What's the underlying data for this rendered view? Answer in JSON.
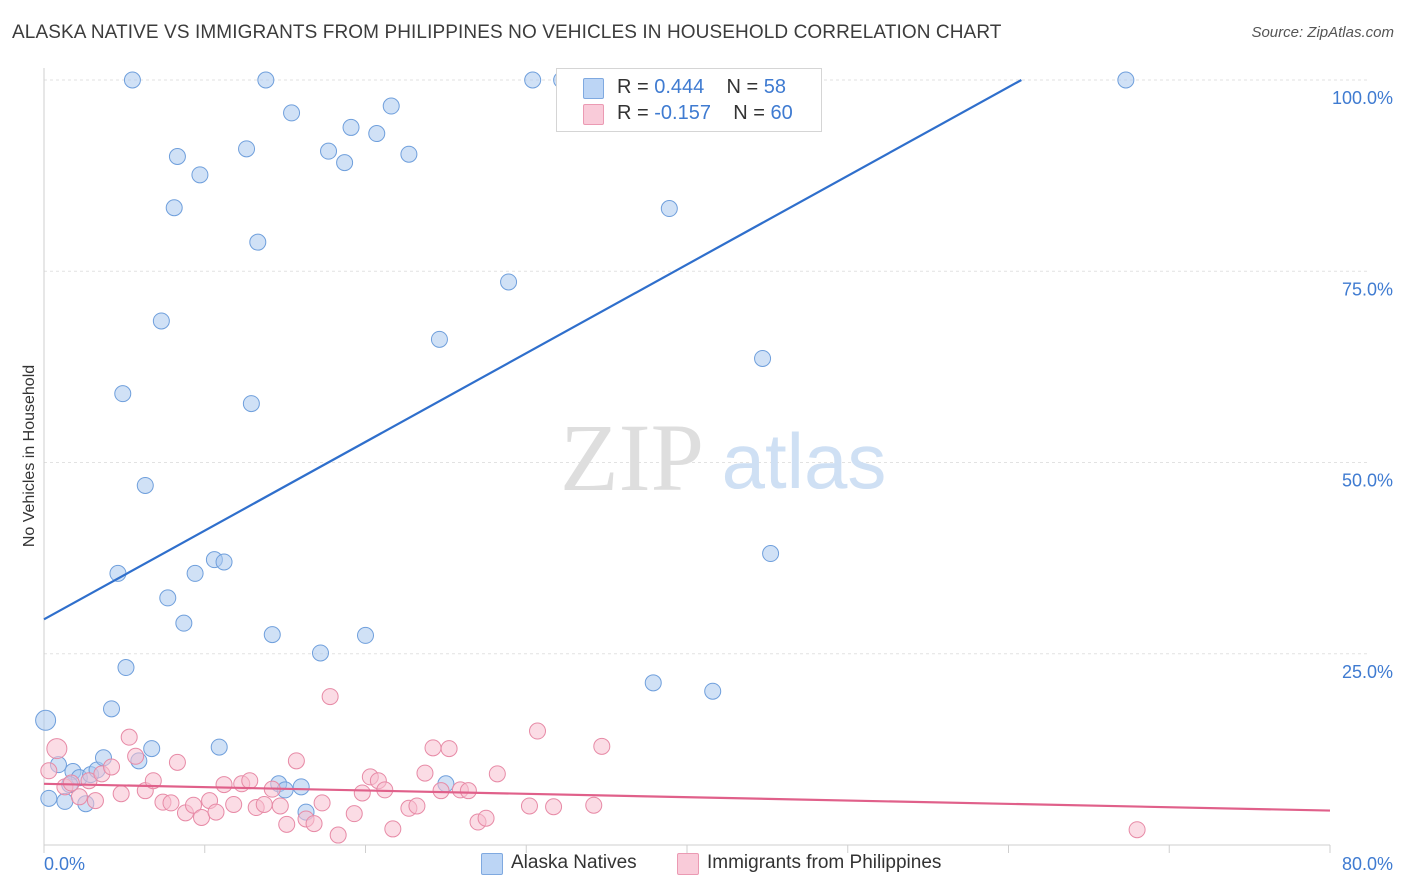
{
  "title": "ALASKA NATIVE VS IMMIGRANTS FROM PHILIPPINES NO VEHICLES IN HOUSEHOLD CORRELATION CHART",
  "source": "Source: ZipAtlas.com",
  "watermark": {
    "zip": "ZIP",
    "atlas": "atlas"
  },
  "legend": {
    "r_label": "R =",
    "n_label": "N =",
    "series": [
      {
        "r": "0.444",
        "n": "58"
      },
      {
        "r": "-0.157",
        "n": "60"
      }
    ]
  },
  "chart_data": {
    "type": "scatter",
    "ylabel": "No Vehicles in Household",
    "xlim": [
      0,
      80
    ],
    "ylim": [
      0,
      100
    ],
    "x_tick_labels": [
      "0.0%",
      "80.0%"
    ],
    "y_tick_values": [
      25,
      50,
      75,
      100
    ],
    "y_tick_labels": [
      "25.0%",
      "50.0%",
      "75.0%",
      "100.0%"
    ],
    "grid": true,
    "series": [
      {
        "name": "Alaska Natives",
        "color": "#a9c8ef",
        "stroke": "#6f9fdc",
        "trend_color": "#2f6fcc",
        "trend": {
          "x0": 0,
          "y0": 29.5,
          "x1": 60.8,
          "y1": 100
        },
        "points": [
          [
            0.1,
            16.3
          ],
          [
            0.3,
            6.1
          ],
          [
            0.9,
            10.5
          ],
          [
            1.3,
            5.7
          ],
          [
            1.8,
            9.6
          ],
          [
            2.2,
            8.8
          ],
          [
            2.6,
            5.4
          ],
          [
            2.9,
            9.2
          ],
          [
            3.3,
            9.8
          ],
          [
            3.7,
            11.4
          ],
          [
            4.2,
            17.8
          ],
          [
            4.6,
            35.5
          ],
          [
            4.9,
            59
          ],
          [
            5.1,
            23.2
          ],
          [
            5.5,
            100
          ],
          [
            5.9,
            11.0
          ],
          [
            6.3,
            47
          ],
          [
            6.7,
            12.6
          ],
          [
            7.3,
            68.5
          ],
          [
            7.7,
            32.3
          ],
          [
            8.1,
            83.3
          ],
          [
            8.3,
            90.0
          ],
          [
            8.7,
            29.0
          ],
          [
            9.4,
            35.5
          ],
          [
            9.7,
            87.6
          ],
          [
            10.6,
            37.3
          ],
          [
            10.9,
            12.8
          ],
          [
            11.2,
            37.0
          ],
          [
            12.6,
            91.0
          ],
          [
            12.9,
            57.7
          ],
          [
            13.3,
            78.8
          ],
          [
            13.8,
            100
          ],
          [
            14.2,
            27.5
          ],
          [
            14.6,
            8.0
          ],
          [
            15.0,
            7.2
          ],
          [
            15.4,
            95.7
          ],
          [
            16.0,
            7.6
          ],
          [
            16.3,
            4.3
          ],
          [
            17.2,
            25.1
          ],
          [
            17.7,
            90.7
          ],
          [
            18.7,
            89.2
          ],
          [
            19.1,
            93.8
          ],
          [
            20.0,
            27.4
          ],
          [
            20.7,
            93.0
          ],
          [
            21.6,
            96.6
          ],
          [
            22.7,
            90.3
          ],
          [
            24.6,
            66.1
          ],
          [
            25.0,
            8.0
          ],
          [
            28.9,
            73.6
          ],
          [
            30.4,
            100
          ],
          [
            32.2,
            100
          ],
          [
            37.9,
            21.2
          ],
          [
            38.9,
            83.2
          ],
          [
            41.6,
            20.1
          ],
          [
            44.7,
            63.6
          ],
          [
            45.2,
            38.1
          ],
          [
            67.3,
            100
          ],
          [
            1.6,
            7.9
          ]
        ]
      },
      {
        "name": "Immigrants from Philippines",
        "color": "#f7bfd0",
        "stroke": "#e78aa6",
        "trend_color": "#e0608a",
        "trend": {
          "x0": 0,
          "y0": 8.0,
          "x1": 80,
          "y1": 4.5
        },
        "points": [
          [
            0.3,
            9.7
          ],
          [
            0.8,
            12.6
          ],
          [
            1.3,
            7.6
          ],
          [
            1.7,
            8.1
          ],
          [
            2.2,
            6.3
          ],
          [
            2.8,
            8.4
          ],
          [
            3.2,
            5.8
          ],
          [
            3.6,
            9.3
          ],
          [
            4.2,
            10.2
          ],
          [
            4.8,
            6.7
          ],
          [
            5.3,
            14.1
          ],
          [
            5.7,
            11.6
          ],
          [
            6.3,
            7.1
          ],
          [
            6.8,
            8.4
          ],
          [
            7.4,
            5.6
          ],
          [
            7.9,
            5.5
          ],
          [
            8.3,
            10.8
          ],
          [
            8.8,
            4.2
          ],
          [
            9.3,
            5.2
          ],
          [
            9.8,
            3.6
          ],
          [
            10.3,
            5.8
          ],
          [
            10.7,
            4.3
          ],
          [
            11.2,
            7.9
          ],
          [
            11.8,
            5.3
          ],
          [
            12.3,
            8.0
          ],
          [
            12.8,
            8.4
          ],
          [
            13.2,
            4.9
          ],
          [
            13.7,
            5.3
          ],
          [
            14.2,
            7.3
          ],
          [
            14.7,
            5.1
          ],
          [
            15.1,
            2.7
          ],
          [
            15.7,
            11.0
          ],
          [
            16.3,
            3.4
          ],
          [
            16.8,
            2.8
          ],
          [
            17.3,
            5.5
          ],
          [
            17.8,
            19.4
          ],
          [
            18.3,
            1.3
          ],
          [
            19.3,
            4.1
          ],
          [
            19.8,
            6.8
          ],
          [
            20.3,
            8.9
          ],
          [
            20.8,
            8.4
          ],
          [
            21.2,
            7.2
          ],
          [
            21.7,
            2.1
          ],
          [
            22.7,
            4.8
          ],
          [
            23.2,
            5.1
          ],
          [
            23.7,
            9.4
          ],
          [
            24.2,
            12.7
          ],
          [
            24.7,
            7.1
          ],
          [
            25.2,
            12.6
          ],
          [
            25.9,
            7.2
          ],
          [
            26.4,
            7.1
          ],
          [
            27.0,
            3.0
          ],
          [
            27.5,
            3.5
          ],
          [
            28.2,
            9.3
          ],
          [
            30.2,
            5.1
          ],
          [
            30.7,
            14.9
          ],
          [
            31.7,
            5.0
          ],
          [
            34.2,
            5.2
          ],
          [
            34.7,
            12.9
          ],
          [
            68.0,
            2.0
          ]
        ]
      }
    ]
  }
}
